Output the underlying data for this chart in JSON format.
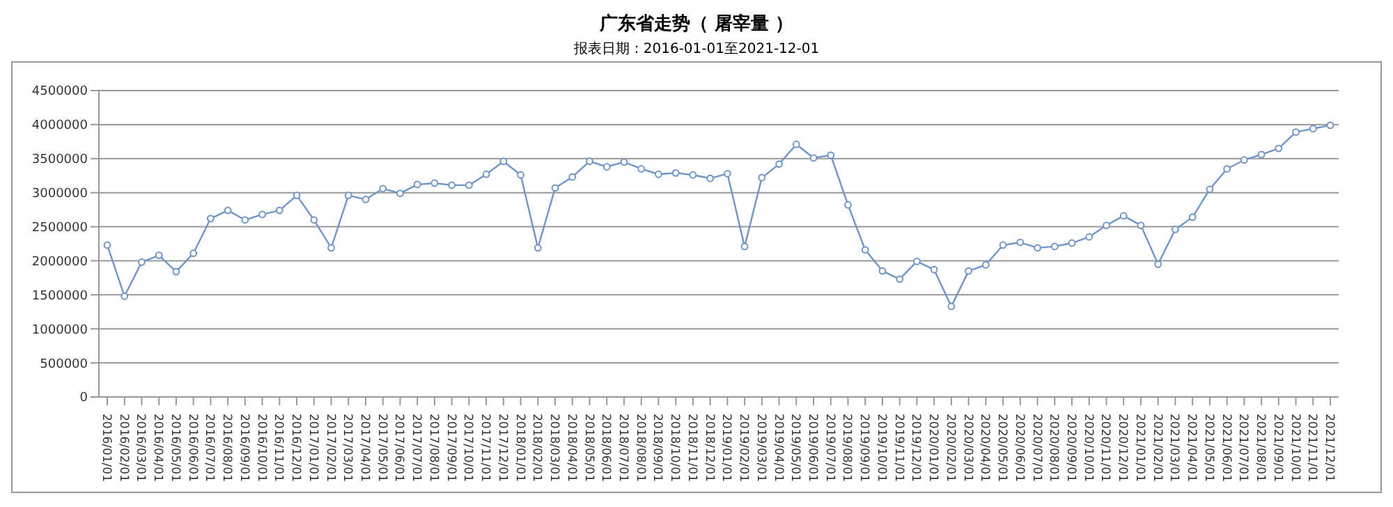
{
  "chart_data": {
    "type": "line",
    "title": "广东省走势（  屠宰量  ）",
    "subtitle": "报表日期：2016-01-01至2021-12-01",
    "categories": [
      "2016/01/01",
      "2016/02/01",
      "2016/03/01",
      "2016/04/01",
      "2016/05/01",
      "2016/06/01",
      "2016/07/01",
      "2016/08/01",
      "2016/09/01",
      "2016/10/01",
      "2016/11/01",
      "2016/12/01",
      "2017/01/01",
      "2017/02/01",
      "2017/03/01",
      "2017/04/01",
      "2017/05/01",
      "2017/06/01",
      "2017/07/01",
      "2017/08/01",
      "2017/09/01",
      "2017/10/01",
      "2017/11/01",
      "2017/12/01",
      "2018/01/01",
      "2018/02/01",
      "2018/03/01",
      "2018/04/01",
      "2018/05/01",
      "2018/06/01",
      "2018/07/01",
      "2018/08/01",
      "2018/09/01",
      "2018/10/01",
      "2018/11/01",
      "2018/12/01",
      "2019/01/01",
      "2019/02/01",
      "2019/03/01",
      "2019/04/01",
      "2019/05/01",
      "2019/06/01",
      "2019/07/01",
      "2019/08/01",
      "2019/09/01",
      "2019/10/01",
      "2019/11/01",
      "2019/12/01",
      "2020/01/01",
      "2020/02/01",
      "2020/03/01",
      "2020/04/01",
      "2020/05/01",
      "2020/06/01",
      "2020/07/01",
      "2020/08/01",
      "2020/09/01",
      "2020/10/01",
      "2020/11/01",
      "2020/12/01",
      "2021/01/01",
      "2021/02/01",
      "2021/03/01",
      "2021/04/01",
      "2021/05/01",
      "2021/06/01",
      "2021/07/01",
      "2021/08/01",
      "2021/09/01",
      "2021/10/01",
      "2021/11/01",
      "2021/12/01"
    ],
    "series": [
      {
        "color": "#7095c8",
        "values": [
          2230000,
          1480000,
          1980000,
          2080000,
          1840000,
          2110000,
          2620000,
          2740000,
          2600000,
          2680000,
          2740000,
          2960000,
          2600000,
          2190000,
          2960000,
          2900000,
          3060000,
          2990000,
          3120000,
          3140000,
          3110000,
          3110000,
          3270000,
          3460000,
          3260000,
          2190000,
          3070000,
          3230000,
          3460000,
          3380000,
          3450000,
          3350000,
          3270000,
          3290000,
          3260000,
          3210000,
          3280000,
          2210000,
          3220000,
          3420000,
          3710000,
          3510000,
          3550000,
          2820000,
          2160000,
          1850000,
          1730000,
          1990000,
          1870000,
          1330000,
          1850000,
          1940000,
          2230000,
          2270000,
          2190000,
          2210000,
          2260000,
          2350000,
          2520000,
          2660000,
          2520000,
          1950000,
          2460000,
          2640000,
          3050000,
          3350000,
          3480000,
          3560000,
          3650000,
          3890000,
          3940000,
          3990000
        ]
      }
    ],
    "ylim": [
      0,
      4500000
    ],
    "yticks": [
      0,
      500000,
      1000000,
      1500000,
      2000000,
      2500000,
      3000000,
      3500000,
      4000000,
      4500000
    ],
    "grid": "y",
    "legend": false,
    "marker": "circle",
    "line_style": "solid"
  }
}
